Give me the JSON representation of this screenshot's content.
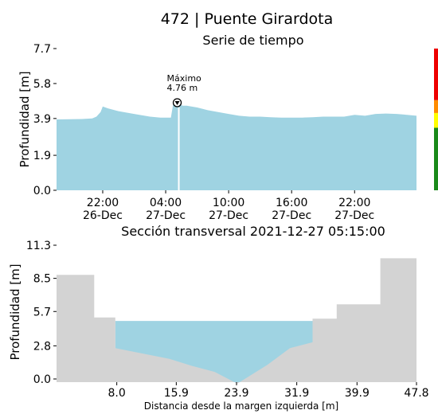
{
  "page": {
    "title": "472 | Puente Girardota"
  },
  "chart_data": [
    {
      "type": "area",
      "title": "Serie de tiempo",
      "ylabel": "Profundidad [m]",
      "xlabel": "",
      "ylim": [
        0,
        7.7
      ],
      "yticks": [
        "0.0",
        "1.9",
        "3.9",
        "5.8",
        "7.7"
      ],
      "ytick_values": [
        0,
        1.9,
        3.9,
        5.8,
        7.7
      ],
      "xlim_hours": [
        -4.4,
        29.9
      ],
      "xticks": [
        {
          "hour": 0,
          "time": "22:00",
          "date": "26-Dec"
        },
        {
          "hour": 6,
          "time": "04:00",
          "date": "27-Dec"
        },
        {
          "hour": 12,
          "time": "10:00",
          "date": "27-Dec"
        },
        {
          "hour": 18,
          "time": "16:00",
          "date": "27-Dec"
        },
        {
          "hour": 24,
          "time": "22:00",
          "date": "27-Dec"
        }
      ],
      "series": [
        {
          "x_hours": [
            -4.4,
            -2,
            -1,
            -0.6,
            -0.2,
            0,
            0.5,
            1.5,
            3,
            4.5,
            5.5,
            6.2,
            6.5,
            6.7,
            7,
            7.3,
            7.6,
            8,
            9,
            10,
            11,
            12,
            13,
            14,
            15,
            16,
            17,
            18,
            19,
            20,
            21,
            22,
            23,
            24,
            25,
            26,
            27,
            28,
            29,
            29.9
          ],
          "y": [
            3.85,
            3.87,
            3.9,
            4.0,
            4.25,
            4.55,
            4.45,
            4.3,
            4.15,
            4.0,
            3.95,
            3.95,
            3.95,
            4.65,
            4.7,
            4.72,
            4.6,
            4.6,
            4.5,
            4.35,
            4.25,
            4.15,
            4.05,
            4.0,
            4.0,
            3.97,
            3.95,
            3.95,
            3.95,
            3.97,
            4.0,
            4.0,
            4.0,
            4.1,
            4.05,
            4.15,
            4.17,
            4.15,
            4.1,
            4.05
          ]
        }
      ],
      "current_hour": 7.25,
      "annotation": {
        "label": "Máximo",
        "value_text": "4.76 m",
        "hour": 7.1,
        "value": 4.76
      },
      "alert_bar": {
        "levels": [
          {
            "from": 0,
            "to": 3.4,
            "color": "#1a8a1a"
          },
          {
            "from": 3.4,
            "to": 4.2,
            "color": "#ffff00"
          },
          {
            "from": 4.2,
            "to": 4.9,
            "color": "#ff8c00"
          },
          {
            "from": 4.9,
            "to": 7.7,
            "color": "#ee0000"
          }
        ]
      },
      "fill_color": "#9fd3e2"
    },
    {
      "type": "area",
      "title": "Sección transversal 2021-12-27 05:15:00",
      "ylabel": "Profundidad [m]",
      "xlabel": "Distancia desde la margen izquierda [m]",
      "xlim": [
        0,
        47.8
      ],
      "ylim": [
        0,
        11.3
      ],
      "xticks": [
        "8.0",
        "15.9",
        "23.9",
        "31.9",
        "39.9",
        "47.8"
      ],
      "xtick_values": [
        8.0,
        15.9,
        23.9,
        31.9,
        39.9,
        47.8
      ],
      "yticks": [
        "0.0",
        "2.8",
        "5.7",
        "8.5",
        "11.3"
      ],
      "ytick_values": [
        0,
        2.8,
        5.7,
        8.5,
        11.3
      ],
      "bed_profile": {
        "x": [
          0,
          5,
          5,
          7.8,
          7.8,
          11,
          15,
          18,
          21,
          24,
          28,
          31,
          34,
          34,
          37.2,
          37.2,
          43,
          43,
          47.8
        ],
        "y": [
          8.8,
          8.8,
          5.2,
          5.2,
          2.6,
          2.2,
          1.7,
          1.1,
          0.6,
          -0.4,
          1.2,
          2.6,
          3.1,
          5.1,
          5.1,
          6.3,
          6.3,
          10.2,
          10.2
        ]
      },
      "water_level": 4.9,
      "water_x": [
        7.8,
        34
      ],
      "bed_color": "#d3d3d3",
      "water_color": "#9fd3e2"
    }
  ]
}
